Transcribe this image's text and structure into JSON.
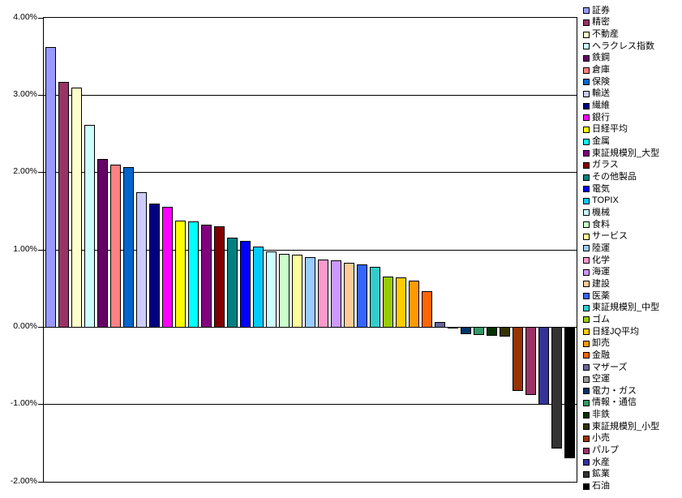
{
  "chart_data": {
    "type": "bar",
    "title": "",
    "xlabel": "",
    "ylabel": "",
    "ylim": [
      -2,
      4
    ],
    "grid": true,
    "legend_position": "right",
    "y_ticks": [
      {
        "value": 4,
        "label": "4.00%"
      },
      {
        "value": 3,
        "label": "3.00%"
      },
      {
        "value": 2,
        "label": "2.00%"
      },
      {
        "value": 1,
        "label": "1.00%"
      },
      {
        "value": 0,
        "label": "0.00%"
      },
      {
        "value": -1,
        "label": "-1.00%"
      },
      {
        "value": -2,
        "label": "-2.00%"
      }
    ],
    "categories": [
      "証券",
      "精密",
      "不動産",
      "ヘラクレス指数",
      "鉄鋼",
      "倉庫",
      "保険",
      "輸送",
      "繊維",
      "銀行",
      "日経平均",
      "金属",
      "東証規模別_大型",
      "ガラス",
      "その他製品",
      "電気",
      "TOPIX",
      "機械",
      "食料",
      "サービス",
      "陸運",
      "化学",
      "海運",
      "建設",
      "医薬",
      "東証規模別_中型",
      "ゴム",
      "日経JQ平均",
      "卸売",
      "金融",
      "マザーズ",
      "空運",
      "電力・ガス",
      "情報・通信",
      "非鉄",
      "東証規模別_小型",
      "小売",
      "パルプ",
      "水産",
      "鉱業",
      "石油"
    ],
    "values": [
      3.62,
      3.17,
      3.1,
      2.62,
      2.17,
      2.1,
      2.07,
      1.74,
      1.6,
      1.56,
      1.38,
      1.37,
      1.33,
      1.3,
      1.16,
      1.12,
      1.04,
      0.98,
      0.95,
      0.94,
      0.91,
      0.87,
      0.86,
      0.83,
      0.81,
      0.78,
      0.65,
      0.64,
      0.6,
      0.46,
      0.07,
      -0.01,
      -0.09,
      -0.1,
      -0.11,
      -0.12,
      -0.83,
      -0.88,
      -1.0,
      -1.57,
      -1.7
    ],
    "colors": [
      "#9999FF",
      "#993366",
      "#FFFFCC",
      "#CCFFFF",
      "#660066",
      "#FF8080",
      "#0066CC",
      "#CCCCFF",
      "#000080",
      "#FF00FF",
      "#FFFF00",
      "#00FFFF",
      "#800080",
      "#800000",
      "#008080",
      "#0000FF",
      "#00CCFF",
      "#CCFFFF",
      "#CCFFCC",
      "#FFFF99",
      "#99CCFF",
      "#FF99CC",
      "#CC99FF",
      "#FFCC99",
      "#3366FF",
      "#33CCCC",
      "#99CC00",
      "#FFCC00",
      "#FF9900",
      "#FF6600",
      "#666699",
      "#969696",
      "#003366",
      "#339966",
      "#003300",
      "#333300",
      "#993300",
      "#993366",
      "#333399",
      "#333333",
      "#000000"
    ],
    "axis_color": "#000000",
    "background_color": "#FFFFFF"
  }
}
